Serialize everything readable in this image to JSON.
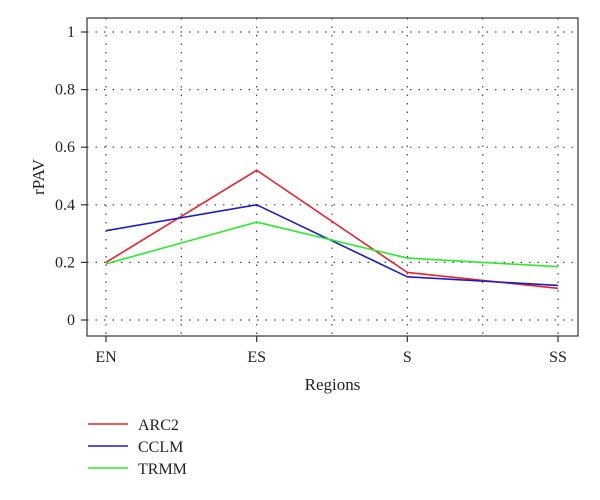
{
  "chart_data": {
    "type": "line",
    "title": "",
    "xlabel": "Regions",
    "ylabel": "rPAV",
    "categories": [
      "EN",
      "ES",
      "S",
      "SS"
    ],
    "ylim": [
      0,
      1
    ],
    "yticks": [
      "0",
      "0.2",
      "0.4",
      "0.6",
      "0.8",
      "1"
    ],
    "grid": true,
    "legend_position": "bottom-left",
    "series": [
      {
        "name": "ARC2",
        "color": "#e8202a",
        "values": [
          0.2,
          0.52,
          0.165,
          0.11
        ]
      },
      {
        "name": "CCLM",
        "color": "#1c1cc4",
        "values": [
          0.31,
          0.4,
          0.15,
          0.12
        ]
      },
      {
        "name": "TRMM",
        "color": "#2ee82e",
        "values": [
          0.195,
          0.34,
          0.215,
          0.185
        ]
      }
    ]
  }
}
